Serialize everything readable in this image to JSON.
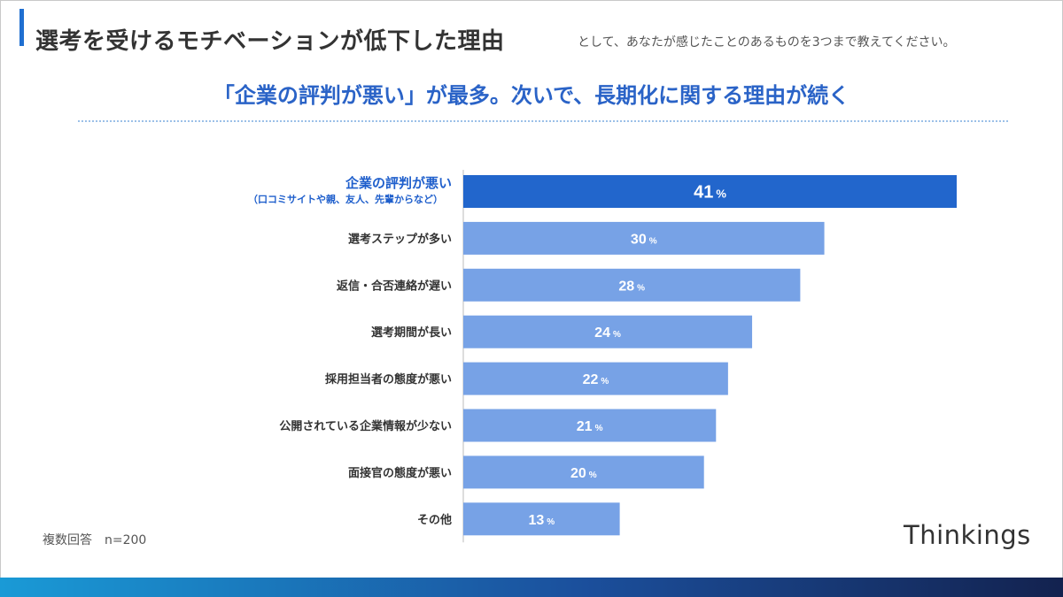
{
  "header": {
    "title_main": "選考を受けるモチベーションが低下した理由",
    "title_sub": "として、あなたが感じたことのあるものを3つまで教えてください。",
    "headline": "「企業の評判が悪い」が最多。次いで、長期化に関する理由が続く"
  },
  "footer": {
    "note": "複数回答　n=200",
    "logo": "Thinkings"
  },
  "colors": {
    "highlight_bar": "#2266cc",
    "bar": "#77a2e6",
    "highlight_label": "#1f5fcc",
    "label": "#333333",
    "axis": "#bbbbbb"
  },
  "chart_data": {
    "type": "bar",
    "orientation": "horizontal",
    "title": "「企業の評判が悪い」が最多。次いで、長期化に関する理由が続く",
    "categories": [
      "企業の評判が悪い",
      "選考ステップが多い",
      "返信・合否連絡が遅い",
      "選考期間が長い",
      "採用担当者の態度が悪い",
      "公開されている企業情報が少ない",
      "面接官の態度が悪い",
      "その他"
    ],
    "category_notes": [
      "（口コミサイトや親、友人、先輩からなど）",
      "",
      "",
      "",
      "",
      "",
      "",
      ""
    ],
    "values": [
      41,
      30,
      28,
      24,
      22,
      21,
      20,
      13
    ],
    "unit": "%",
    "highlight_index": 0,
    "xlim": [
      0,
      41
    ],
    "xlabel": "",
    "ylabel": ""
  }
}
